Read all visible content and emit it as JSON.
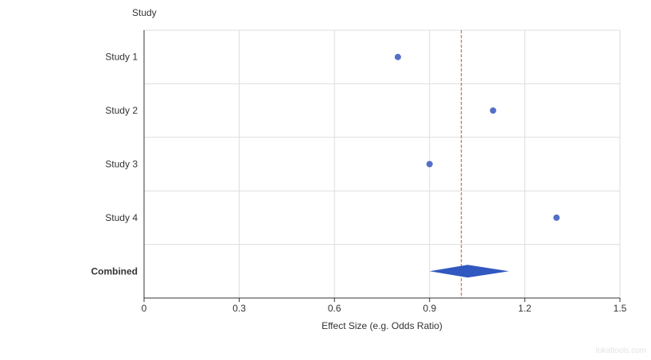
{
  "chart_data": {
    "type": "scatter",
    "subtype": "forest-plot",
    "ytitle": "Study",
    "xlabel": "Effect Size (e.g. Odds Ratio)",
    "xlim": [
      0,
      1.5
    ],
    "xticks": [
      0,
      0.3,
      0.6,
      0.9,
      1.2,
      1.5
    ],
    "xtick_labels": [
      "0",
      "0.3",
      "0.6",
      "0.9",
      "1.2",
      "1.5"
    ],
    "grid": true,
    "categories": [
      "Study 1",
      "Study 2",
      "Study 3",
      "Study 4",
      "Combined"
    ],
    "studies": [
      {
        "label": "Study 1",
        "effect": 0.8
      },
      {
        "label": "Study 2",
        "effect": 1.1
      },
      {
        "label": "Study 3",
        "effect": 0.9
      },
      {
        "label": "Study 4",
        "effect": 1.3
      }
    ],
    "combined": {
      "label": "Combined",
      "effect": 1.02,
      "ci_lower": 0.9,
      "ci_upper": 1.15
    },
    "reference_line": 1.0,
    "colors": {
      "points": "#5470c6",
      "combined": "#3158c1",
      "reference": "#c0541b",
      "grid": "#dddddd",
      "axis": "#333333"
    }
  },
  "watermark": "lokaltools.com"
}
